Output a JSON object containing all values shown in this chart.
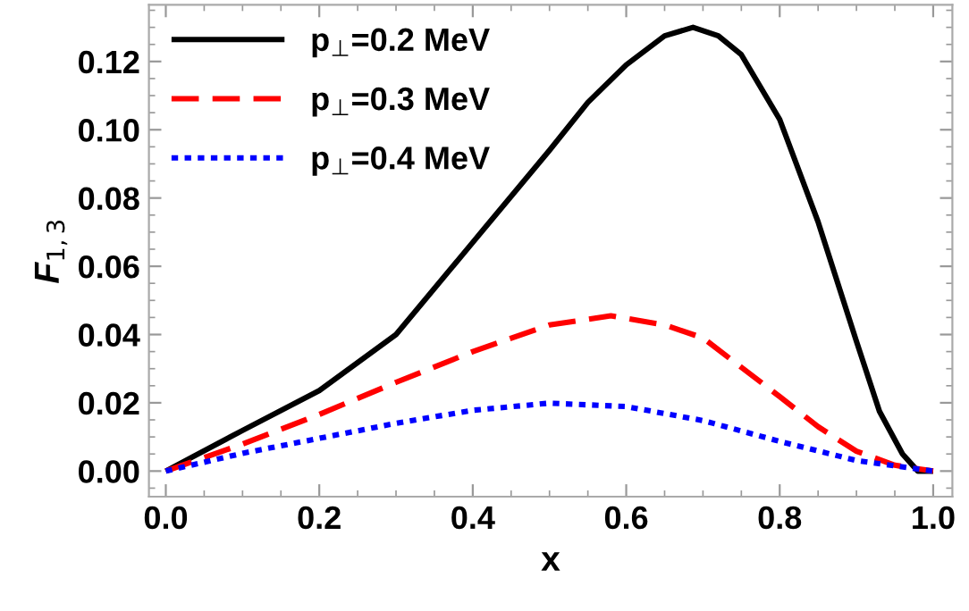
{
  "chart_data": {
    "type": "line",
    "xlabel": "x",
    "ylabel": "F$_{1,3}$",
    "xlim": [
      -0.022,
      1.025
    ],
    "ylim": [
      -0.0075,
      0.1366
    ],
    "xticks": [
      {
        "value": 0,
        "label": "0.0"
      },
      0.2,
      0.4,
      0.6,
      0.8,
      {
        "value": 1,
        "label": "1.0"
      }
    ],
    "yticks": [
      {
        "value": 0,
        "label": "0.00"
      },
      {
        "value": 0.02,
        "label": "0.02"
      },
      {
        "value": 0.04,
        "label": "0.04"
      },
      {
        "value": 0.06,
        "label": "0.06"
      },
      {
        "value": 0.08,
        "label": "0.08"
      },
      {
        "value": 0.1,
        "label": "0.10"
      },
      {
        "value": 0.12,
        "label": "0.12"
      }
    ],
    "legend": "top left",
    "grid": false,
    "series": [
      {
        "name": "p$_{⊥}$=0.2 MeV",
        "color": "#000000",
        "line_style": "solid",
        "x": [
          0,
          0.1,
          0.2,
          0.3,
          0.4,
          0.5,
          0.55,
          0.6,
          0.65,
          0.687,
          0.72,
          0.75,
          0.8,
          0.85,
          0.9,
          0.93,
          0.96,
          0.98,
          1.0
        ],
        "values": [
          0,
          0.0119,
          0.0236,
          0.04,
          0.067,
          0.094,
          0.108,
          0.119,
          0.1275,
          0.13,
          0.1275,
          0.122,
          0.103,
          0.073,
          0.038,
          0.0175,
          0.005,
          0.0,
          0.0
        ]
      },
      {
        "name": "p$_{⊥}$=0.3 MeV",
        "color": "#ff0000",
        "line_style": "dashed",
        "x": [
          0,
          0.1,
          0.2,
          0.3,
          0.4,
          0.5,
          0.58,
          0.65,
          0.7,
          0.8,
          0.85,
          0.9,
          0.95,
          1.0
        ],
        "values": [
          0,
          0.0079,
          0.0166,
          0.026,
          0.035,
          0.0428,
          0.0455,
          0.0428,
          0.039,
          0.0218,
          0.013,
          0.0058,
          0.0017,
          0
        ]
      },
      {
        "name": "p$_{⊥}$=0.4 MeV",
        "color": "#0000ff",
        "line_style": "dotted",
        "x": [
          0,
          0.1,
          0.2,
          0.3,
          0.4,
          0.5,
          0.6,
          0.7,
          0.8,
          0.9,
          1.0
        ],
        "values": [
          0,
          0.0052,
          0.0096,
          0.014,
          0.0178,
          0.0199,
          0.0189,
          0.0148,
          0.0087,
          0.0031,
          0
        ]
      }
    ]
  }
}
